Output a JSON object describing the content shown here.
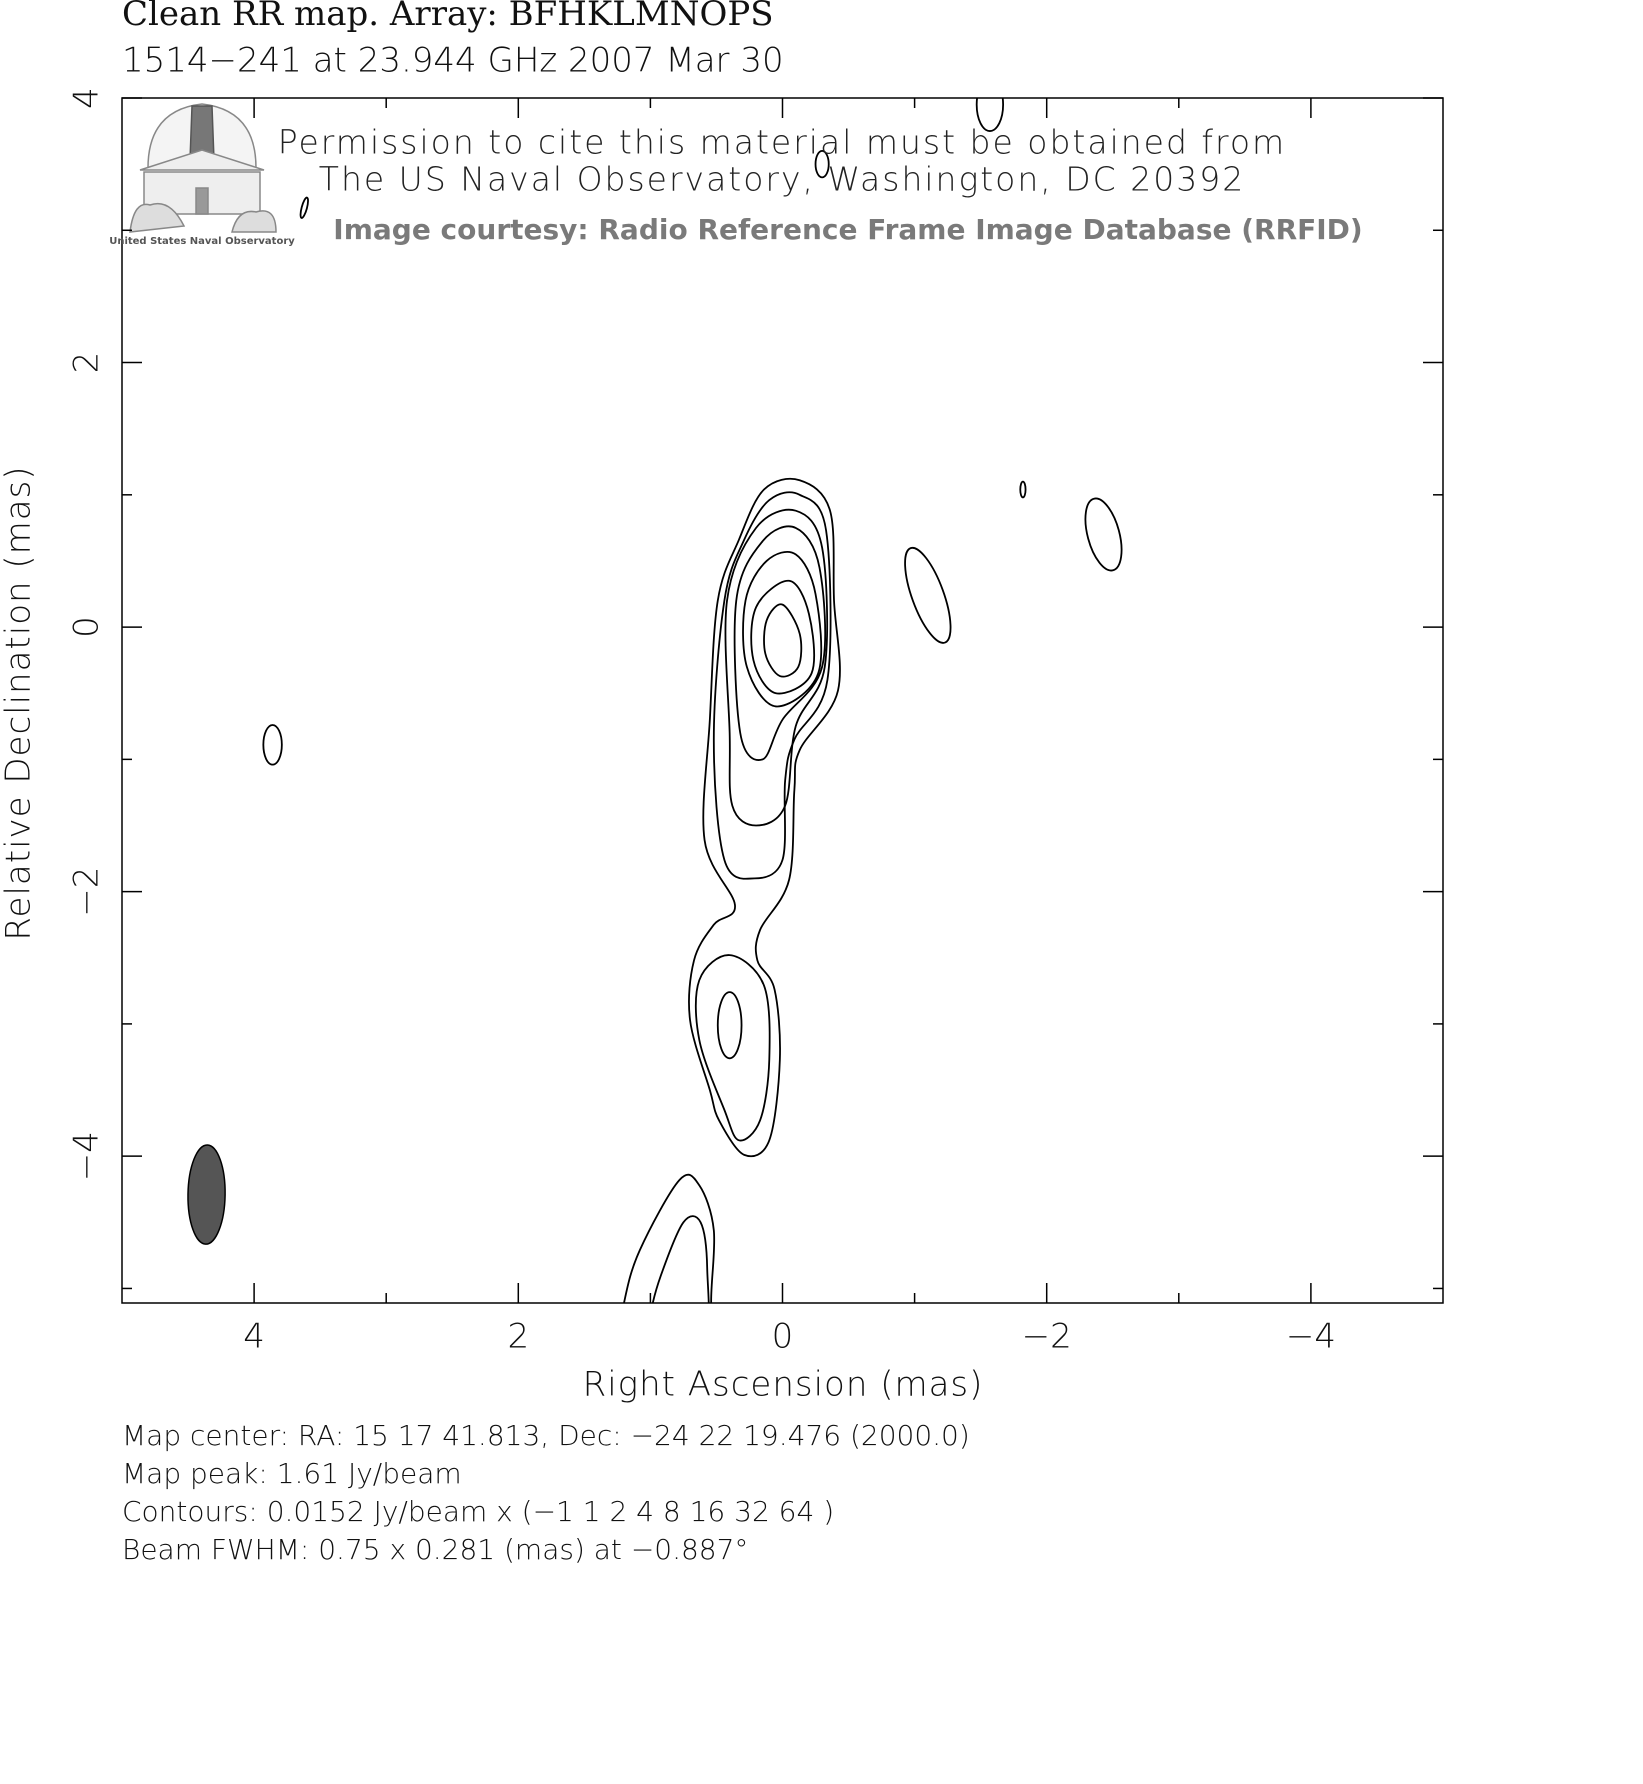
{
  "chart_data": {
    "type": "contour",
    "title": "Clean RR map.  Array:  BFHKLMNOPS",
    "subtitle": "1514−241 at 23.944 GHz 2007 Mar 30",
    "permission": [
      "Permission to cite this material must be obtained from",
      "The US Naval Observatory, Washington, DC 20392"
    ],
    "courtesy": "Image courtesy: Radio Reference Frame Image Database (RRFID)",
    "logo_text": "United States Naval Observatory",
    "x_label": "Right Ascension   (mas)",
    "y_label": "Relative Declination   (mas)",
    "xlim": [
      5,
      -5
    ],
    "ylim": [
      -5.11,
      4
    ],
    "xticks": [
      4,
      2,
      0,
      {
        "value": -2,
        "label": "−2"
      },
      {
        "value": -4,
        "label": "−4"
      }
    ],
    "yticks": [
      4,
      2,
      0,
      {
        "value": -2,
        "label": "−2"
      },
      {
        "value": -4,
        "label": "−4"
      }
    ],
    "xminorticks": [
      3,
      1,
      -1,
      -3
    ],
    "yminorticks": [
      3,
      1,
      -1,
      -3,
      -5
    ],
    "color": "#000000",
    "contours": [
      [
        [
          -0.13,
          1.11
        ],
        [
          -0.36,
          0.88
        ],
        [
          -0.39,
          0.2
        ],
        [
          -0.42,
          -0.48
        ],
        [
          -0.13,
          -0.93
        ],
        [
          -0.09,
          -1.23
        ],
        [
          -0.05,
          -1.91
        ],
        [
          0.17,
          -2.29
        ],
        [
          0.19,
          -2.52
        ],
        [
          0.06,
          -2.74
        ],
        [
          0.02,
          -3.27
        ],
        [
          0.1,
          -3.88
        ],
        [
          0.29,
          -3.99
        ],
        [
          0.48,
          -3.73
        ],
        [
          0.55,
          -3.5
        ],
        [
          0.7,
          -2.97
        ],
        [
          0.67,
          -2.52
        ],
        [
          0.52,
          -2.25
        ],
        [
          0.36,
          -2.1
        ],
        [
          0.59,
          -1.61
        ],
        [
          0.55,
          -0.7
        ],
        [
          0.49,
          0.2
        ],
        [
          0.33,
          0.66
        ],
        [
          0.14,
          1.04
        ]
      ],
      [
        [
          -0.13,
          1.0
        ],
        [
          -0.33,
          0.73
        ],
        [
          -0.34,
          -0.4
        ],
        [
          -0.09,
          -0.85
        ],
        [
          -0.02,
          -1.16
        ],
        [
          0,
          -1.76
        ],
        [
          0.21,
          -1.9
        ],
        [
          0.44,
          -1.76
        ],
        [
          0.52,
          -0.85
        ],
        [
          0.44,
          0.2
        ],
        [
          0.29,
          0.66
        ],
        [
          0.1,
          0.96
        ]
      ],
      [
        [
          -0.1,
          0.88
        ],
        [
          -0.3,
          0.6
        ],
        [
          -0.32,
          -0.3
        ],
        [
          -0.1,
          -0.75
        ],
        [
          -0.02,
          -1.35
        ],
        [
          0.2,
          -1.5
        ],
        [
          0.38,
          -1.35
        ],
        [
          0.4,
          -0.8
        ],
        [
          0.42,
          0.2
        ],
        [
          0.2,
          0.75
        ]
      ],
      [
        [
          -0.1,
          0.75
        ],
        [
          -0.28,
          0.45
        ],
        [
          -0.3,
          -0.3
        ],
        [
          0,
          -0.7
        ],
        [
          0.15,
          -1.0
        ],
        [
          0.32,
          -0.8
        ],
        [
          0.35,
          0.2
        ],
        [
          0.15,
          0.65
        ]
      ],
      [
        [
          -0.1,
          0.55
        ],
        [
          -0.25,
          0.25
        ],
        [
          -0.27,
          -0.35
        ],
        [
          0.05,
          -0.6
        ],
        [
          0.27,
          -0.3
        ],
        [
          0.28,
          0.2
        ],
        [
          0.12,
          0.5
        ]
      ],
      [
        [
          -0.05,
          0.35
        ],
        [
          -0.2,
          0.1
        ],
        [
          -0.22,
          -0.35
        ],
        [
          0.05,
          -0.5
        ],
        [
          0.22,
          -0.25
        ],
        [
          0.2,
          0.15
        ]
      ],
      [
        [
          0,
          0.17
        ],
        [
          -0.13,
          -0.05
        ],
        [
          -0.12,
          -0.3
        ],
        [
          0.02,
          -0.37
        ],
        [
          0.13,
          -0.2
        ],
        [
          0.12,
          0.05
        ]
      ],
      [
        [
          0.4,
          -2.48
        ],
        [
          0.14,
          -2.71
        ],
        [
          0.1,
          -3.27
        ],
        [
          0.17,
          -3.73
        ],
        [
          0.33,
          -3.88
        ],
        [
          0.44,
          -3.65
        ],
        [
          0.63,
          -3.12
        ],
        [
          0.63,
          -2.67
        ]
      ],
      [
        [
          1.25,
          -5.5
        ],
        [
          1.2,
          -5.11
        ],
        [
          1.08,
          -4.71
        ],
        [
          0.78,
          -4.18
        ],
        [
          0.63,
          -4.22
        ],
        [
          0.52,
          -4.56
        ],
        [
          0.54,
          -5.11
        ],
        [
          0.5,
          -5.5
        ]
      ],
      [
        [
          1.02,
          -5.5
        ],
        [
          1.0,
          -5.2
        ],
        [
          0.92,
          -4.9
        ],
        [
          0.75,
          -4.5
        ],
        [
          0.62,
          -4.5
        ],
        [
          0.57,
          -4.85
        ],
        [
          0.6,
          -5.5
        ]
      ]
    ],
    "components": [
      {
        "x": 0.4,
        "y": -3.01,
        "rx": 0.09,
        "ry": 0.25,
        "angle": 0
      },
      {
        "x": -1.1,
        "y": 0.24,
        "rx": 0.12,
        "ry": 0.38,
        "angle": -20
      },
      {
        "x": -2.43,
        "y": 0.7,
        "rx": 0.12,
        "ry": 0.28,
        "angle": -15
      },
      {
        "x": -1.82,
        "y": 1.04,
        "rx": 0.02,
        "ry": 0.06,
        "angle": 0
      },
      {
        "x": 3.86,
        "y": -0.89,
        "rx": 0.07,
        "ry": 0.15,
        "angle": 0
      },
      {
        "x": -1.57,
        "y": 3.95,
        "rx": 0.1,
        "ry": 0.2,
        "angle": 0
      },
      {
        "x": -0.3,
        "y": 3.5,
        "rx": 0.05,
        "ry": 0.1,
        "angle": 0
      },
      {
        "x": 3.62,
        "y": 3.17,
        "rx": 0.02,
        "ry": 0.08,
        "angle": 15
      }
    ],
    "beam": {
      "x": 4.36,
      "y": -4.29,
      "major": 0.75,
      "minor": 0.281,
      "angle": -0.887,
      "color": "#555555"
    },
    "footer": [
      "Map center:  RA: 15 17 41.813,  Dec: −24 22 19.476 (2000.0)",
      "Map peak: 1.61 Jy/beam",
      "Contours: 0.0152 Jy/beam x (−1 1 2 4 8 16 32 64 )",
      "Beam FWHM: 0.75 x 0.281 (mas) at −0.887°"
    ]
  }
}
